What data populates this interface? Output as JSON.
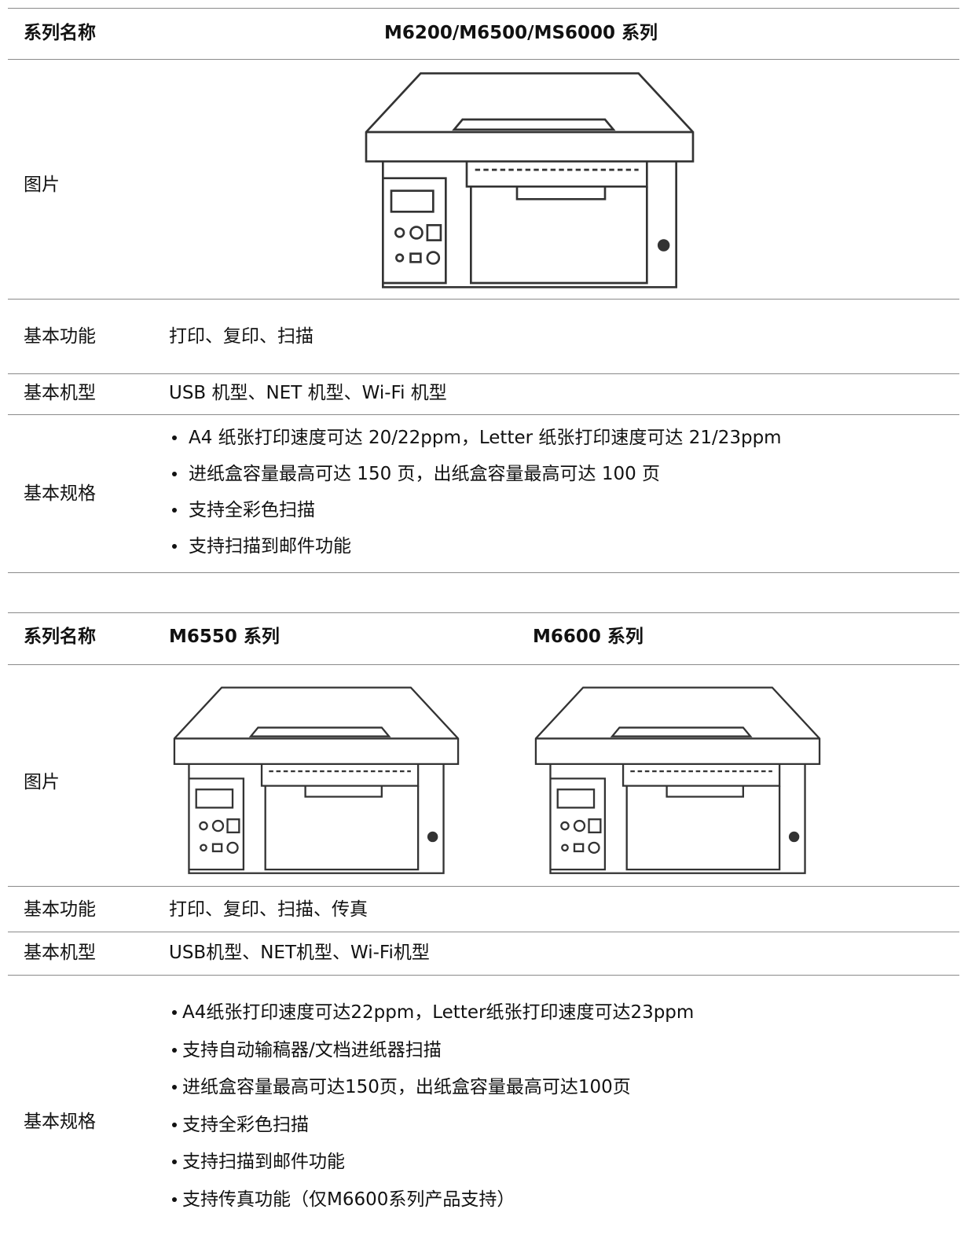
{
  "tables": [
    {
      "header": {
        "label": "系列名称",
        "series": [
          "M6200/M6500/MS6000 系列"
        ]
      },
      "image_label": "图片",
      "function": {
        "label": "基本功能",
        "text": "打印、复印、扫描"
      },
      "models": {
        "label": "基本机型",
        "text": "USB 机型、NET 机型、Wi-Fi 机型"
      },
      "specs": {
        "label": "基本规格",
        "items": [
          "A4 纸张打印速度可达 20/22ppm，Letter 纸张打印速度可达 21/23ppm",
          "进纸盒容量最高可达 150 页，出纸盒容量最高可达 100 页",
          "支持全彩色扫描",
          "支持扫描到邮件功能"
        ]
      }
    },
    {
      "header": {
        "label": "系列名称",
        "series": [
          "M6550 系列",
          "M6600 系列"
        ]
      },
      "image_label": "图片",
      "function": {
        "label": "基本功能",
        "text": "打印、复印、扫描、传真"
      },
      "models": {
        "label": "基本机型",
        "text": "USB机型、NET机型、Wi-Fi机型"
      },
      "specs": {
        "label": "基本规格",
        "items": [
          "A4纸张打印速度可达22ppm，Letter纸张打印速度可达23ppm",
          "支持自动输稿器/文档进纸器扫描",
          "进纸盒容量最高可达150页，出纸盒容量最高可达100页",
          "支持全彩色扫描",
          "支持扫描到邮件功能",
          "支持传真功能（仅M6600系列产品支持）"
        ]
      }
    }
  ]
}
